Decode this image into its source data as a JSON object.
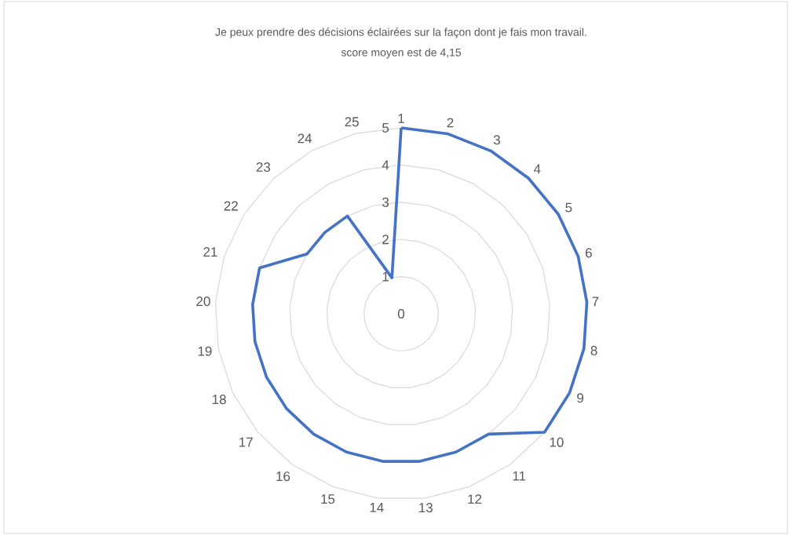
{
  "chart_data": {
    "type": "radar",
    "title": "Je peux prendre des décisions éclairées sur la façon dont je fais mon travail.",
    "subtitle": "score moyen est de 4,15",
    "categories": [
      "1",
      "2",
      "3",
      "4",
      "5",
      "6",
      "7",
      "8",
      "9",
      "10",
      "11",
      "12",
      "13",
      "14",
      "15",
      "16",
      "17",
      "18",
      "19",
      "20",
      "21",
      "22",
      "23",
      "24",
      "25"
    ],
    "series": [
      {
        "color": "#4472c4",
        "values": [
          5,
          5,
          5,
          5,
          5,
          5,
          5,
          5,
          5,
          5,
          4,
          4,
          4,
          4,
          4,
          4,
          4,
          4,
          4,
          4,
          4,
          3,
          3,
          3,
          1
        ]
      }
    ],
    "ylim": [
      0,
      5
    ],
    "yticks": [
      0,
      1,
      2,
      3,
      4,
      5
    ],
    "grid": true
  }
}
